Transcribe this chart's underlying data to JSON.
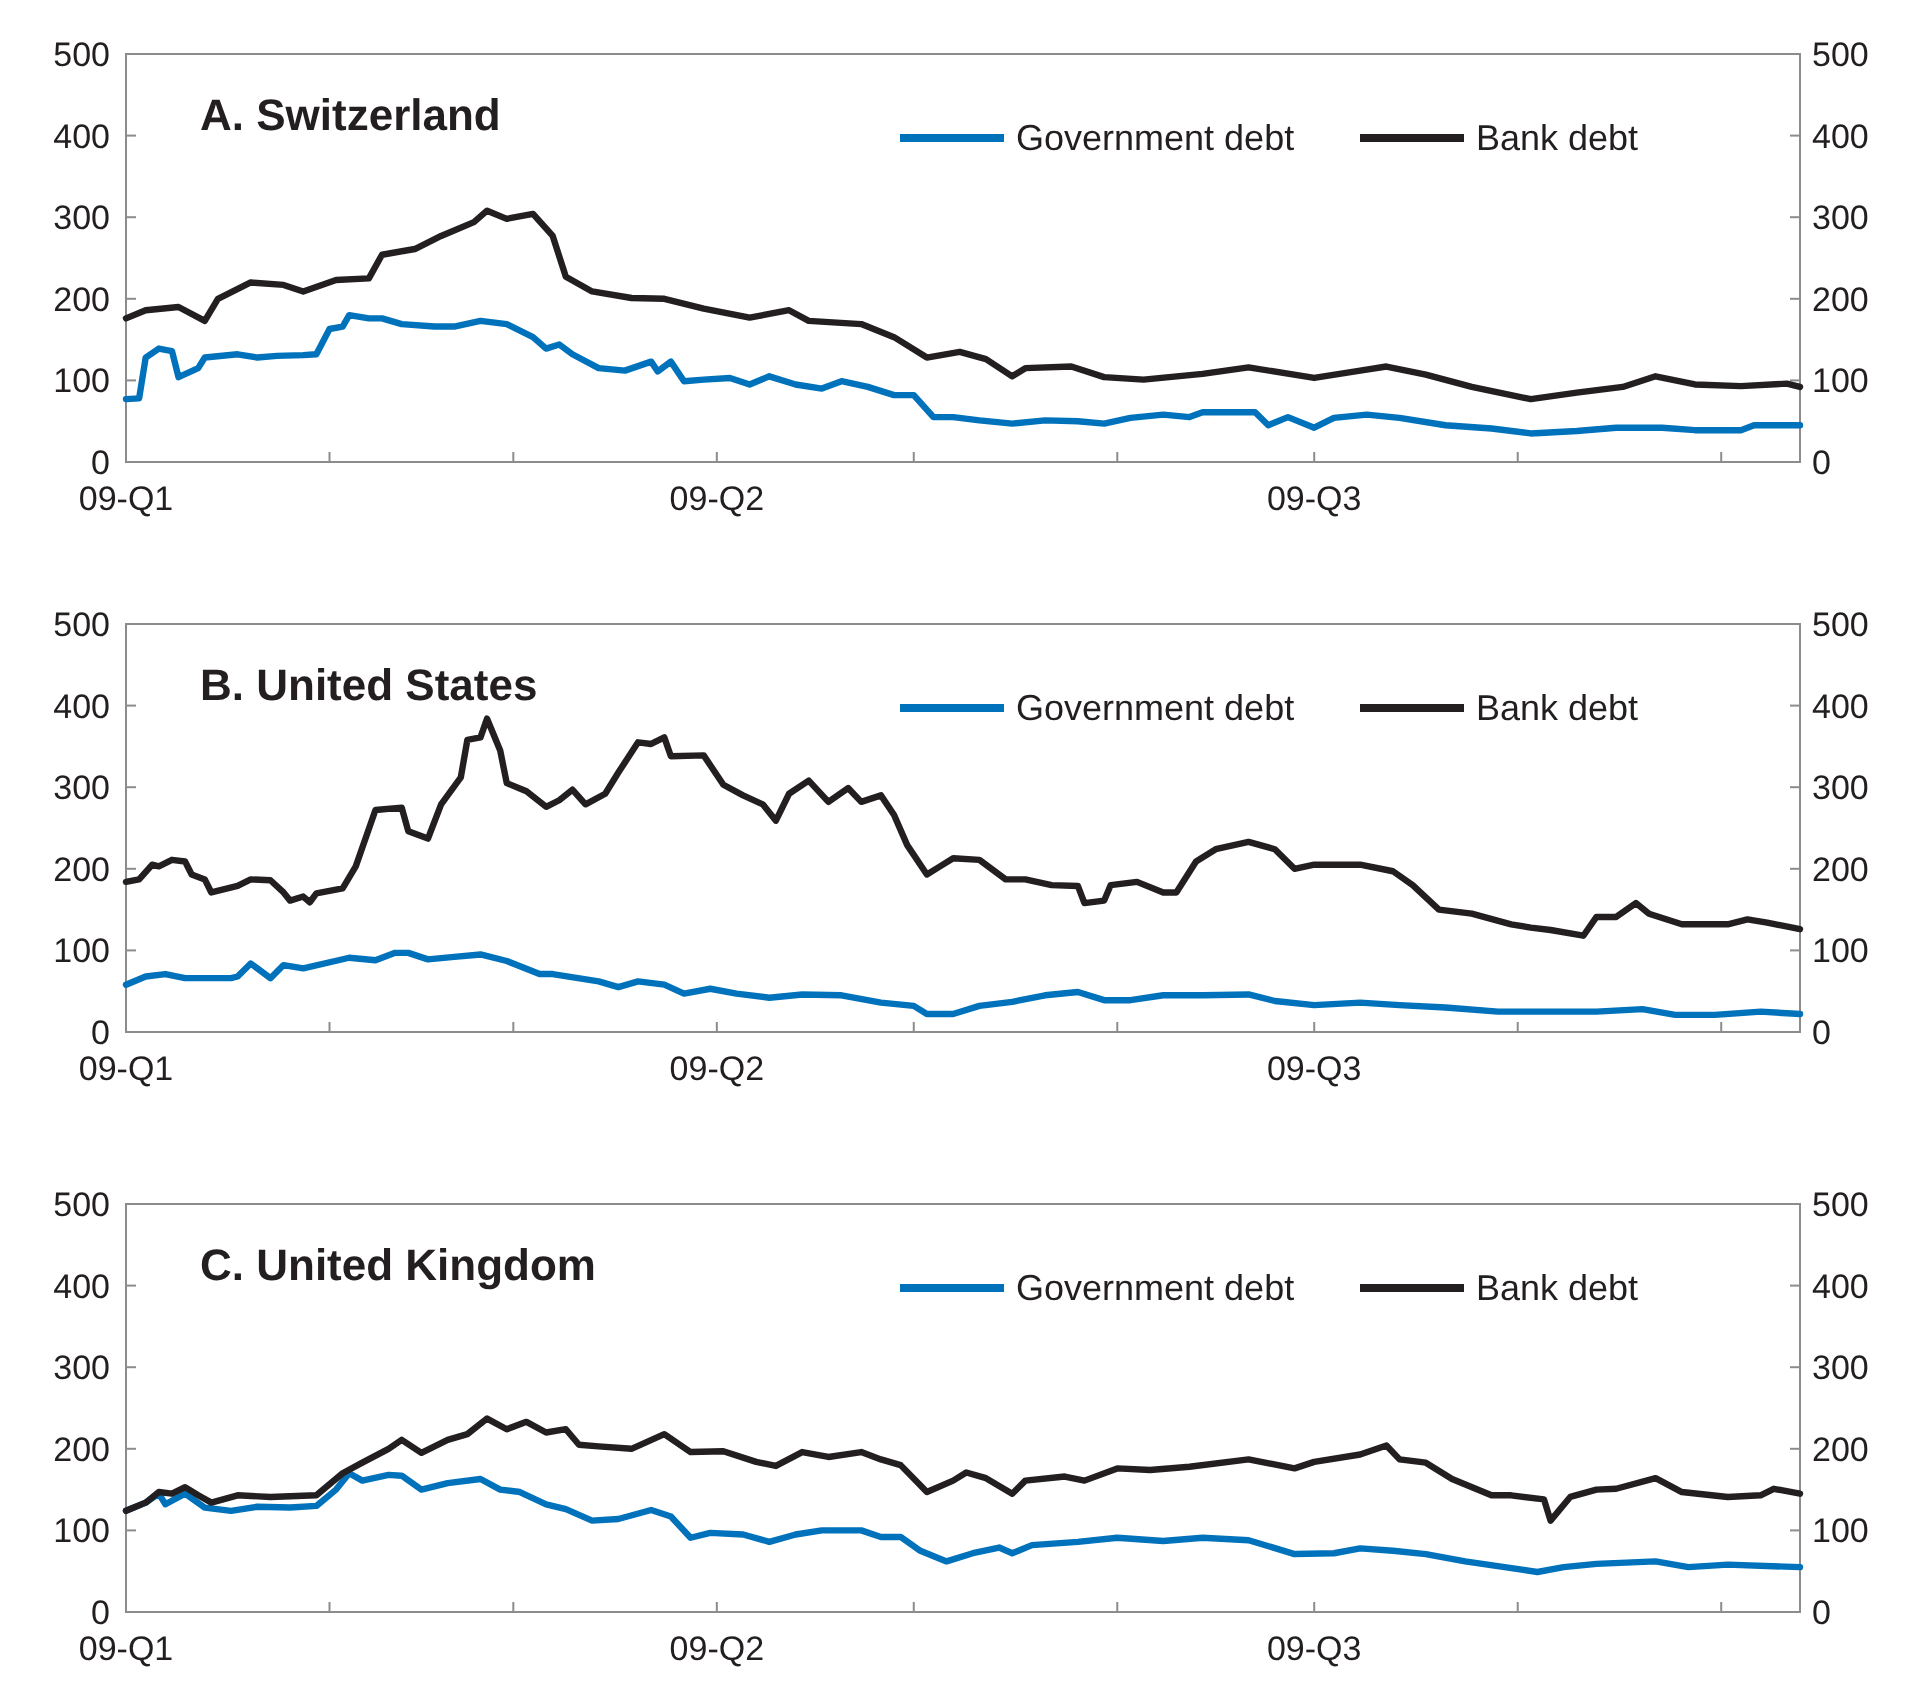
{
  "chart_data": [
    {
      "type": "line",
      "title": "A.  Switzerland",
      "xlim": [
        "--01-01",
        "--09-13"
      ],
      "xticks": [
        {
          "value": "--01-01",
          "label": "09-Q1"
        },
        {
          "value": "--02-01",
          "label": null
        },
        {
          "value": "--03-01",
          "label": null
        },
        {
          "value": "--04-01",
          "label": "09-Q2"
        },
        {
          "value": "--05-01",
          "label": null
        },
        {
          "value": "--06-01",
          "label": null
        },
        {
          "value": "--07-01",
          "label": "09-Q3"
        },
        {
          "value": "--08-01",
          "label": null
        },
        {
          "value": "--09-01",
          "label": null
        }
      ],
      "ylim": [
        0,
        500
      ],
      "yticks": [
        0,
        100,
        200,
        300,
        400,
        500
      ],
      "y2lim": [
        0,
        500
      ],
      "y2ticks": [
        0,
        100,
        200,
        300,
        400,
        500
      ],
      "legend": "top right",
      "series": [
        {
          "name": "Government debt",
          "color": "#0072bc",
          "x": [
            "--01-01",
            "--01-03",
            "--01-04",
            "--01-06",
            "--01-08",
            "--01-09",
            "--01-12",
            "--01-13",
            "--01-18",
            "--01-21",
            "--01-24",
            "--01-28",
            "--01-30",
            "--02-01",
            "--02-03",
            "--02-04",
            "--02-07",
            "--02-09",
            "--02-12",
            "--02-17",
            "--02-20",
            "--02-24",
            "--02-28",
            "--03-04",
            "--03-06",
            "--03-08",
            "--03-10",
            "--03-14",
            "--03-18",
            "--03-22",
            "--03-23",
            "--03-25",
            "--03-27",
            "--03-30",
            "--04-03",
            "--04-06",
            "--04-09",
            "--04-13",
            "--04-17",
            "--04-20",
            "--04-24",
            "--04-28",
            "--05-01",
            "--05-04",
            "--05-07",
            "--05-11",
            "--05-16",
            "--05-21",
            "--05-26",
            "--05-30",
            "--06-03",
            "--06-08",
            "--06-12",
            "--06-14",
            "--06-22",
            "--06-24",
            "--06-27",
            "--07-01",
            "--07-04",
            "--07-09",
            "--07-14",
            "--07-21",
            "--07-28",
            "--08-03",
            "--08-10",
            "--08-16",
            "--08-23",
            "--08-28",
            "--09-04",
            "--09-06",
            "--09-13"
          ],
          "values": [
            77,
            78,
            128,
            139,
            136,
            104,
            115,
            128,
            132,
            128,
            130,
            131,
            132,
            163,
            166,
            180,
            176,
            176,
            169,
            166,
            166,
            173,
            169,
            153,
            139,
            144,
            132,
            115,
            112,
            123,
            111,
            123,
            99,
            101,
            103,
            95,
            105,
            95,
            90,
            99,
            92,
            82,
            82,
            55,
            55,
            51,
            47,
            51,
            50,
            47,
            54,
            58,
            55,
            61,
            61,
            45,
            55,
            42,
            54,
            58,
            54,
            45,
            41,
            35,
            38,
            42,
            42,
            39,
            39,
            45,
            45
          ]
        },
        {
          "name": "Bank debt",
          "color": "#231f20",
          "x": [
            "--01-01",
            "--01-04",
            "--01-09",
            "--01-13",
            "--01-15",
            "--01-20",
            "--01-25",
            "--01-28",
            "--02-02",
            "--02-07",
            "--02-09",
            "--02-14",
            "--02-18",
            "--02-23",
            "--02-25",
            "--02-28",
            "--03-04",
            "--03-07",
            "--03-09",
            "--03-13",
            "--03-19",
            "--03-24",
            "--03-30",
            "--04-06",
            "--04-12",
            "--04-15",
            "--04-23",
            "--04-28",
            "--05-03",
            "--05-08",
            "--05-12",
            "--05-16",
            "--05-18",
            "--05-25",
            "--05-30",
            "--06-05",
            "--06-14",
            "--06-21",
            "--07-01",
            "--07-08",
            "--07-12",
            "--07-18",
            "--07-25",
            "--07-31",
            "--08-03",
            "--08-10",
            "--08-17",
            "--08-22",
            "--08-28",
            "--09-04",
            "--09-11",
            "--09-13"
          ],
          "values": [
            176,
            186,
            190,
            173,
            200,
            220,
            217,
            209,
            223,
            225,
            254,
            261,
            277,
            294,
            308,
            298,
            304,
            277,
            227,
            209,
            201,
            200,
            188,
            177,
            186,
            173,
            169,
            153,
            128,
            135,
            126,
            105,
            115,
            117,
            104,
            101,
            108,
            116,
            103,
            112,
            117,
            107,
            92,
            82,
            77,
            85,
            92,
            105,
            95,
            93,
            96,
            92
          ]
        }
      ]
    },
    {
      "type": "line",
      "title": "B.  United States",
      "xlim": [
        "--01-01",
        "--09-13"
      ],
      "xticks": [
        {
          "value": "--01-01",
          "label": "09-Q1"
        },
        {
          "value": "--02-01",
          "label": null
        },
        {
          "value": "--03-01",
          "label": null
        },
        {
          "value": "--04-01",
          "label": "09-Q2"
        },
        {
          "value": "--05-01",
          "label": null
        },
        {
          "value": "--06-01",
          "label": null
        },
        {
          "value": "--07-01",
          "label": "09-Q3"
        },
        {
          "value": "--08-01",
          "label": null
        },
        {
          "value": "--09-01",
          "label": null
        }
      ],
      "ylim": [
        0,
        500
      ],
      "yticks": [
        0,
        100,
        200,
        300,
        400,
        500
      ],
      "y2lim": [
        0,
        500
      ],
      "y2ticks": [
        0,
        100,
        200,
        300,
        400,
        500
      ],
      "legend": "top right",
      "series": [
        {
          "name": "Government debt",
          "color": "#0072bc",
          "x": [
            "--01-01",
            "--01-04",
            "--01-07",
            "--01-10",
            "--01-17",
            "--01-18",
            "--01-20",
            "--01-21",
            "--01-23",
            "--01-25",
            "--01-28",
            "--02-04",
            "--02-08",
            "--02-11",
            "--02-13",
            "--02-16",
            "--02-20",
            "--02-24",
            "--02-28",
            "--03-05",
            "--03-07",
            "--03-14",
            "--03-17",
            "--03-20",
            "--03-24",
            "--03-27",
            "--03-31",
            "--04-04",
            "--04-09",
            "--04-14",
            "--04-20",
            "--04-26",
            "--05-01",
            "--05-03",
            "--05-07",
            "--05-11",
            "--05-16",
            "--05-21",
            "--05-26",
            "--05-30",
            "--06-03",
            "--06-08",
            "--06-14",
            "--06-21",
            "--06-25",
            "--07-01",
            "--07-08",
            "--07-14",
            "--07-21",
            "--07-29",
            "--08-05",
            "--08-13",
            "--08-20",
            "--08-25",
            "--08-31",
            "--09-07",
            "--09-13"
          ],
          "values": [
            58,
            68,
            71,
            66,
            66,
            68,
            84,
            78,
            66,
            82,
            78,
            91,
            88,
            97,
            97,
            89,
            92,
            95,
            87,
            71,
            71,
            62,
            55,
            62,
            58,
            47,
            53,
            47,
            42,
            46,
            45,
            36,
            32,
            22,
            22,
            32,
            37,
            45,
            49,
            39,
            39,
            45,
            45,
            46,
            38,
            33,
            36,
            33,
            30,
            25,
            25,
            25,
            28,
            21,
            21,
            25,
            22
          ]
        },
        {
          "name": "Bank debt",
          "color": "#231f20",
          "x": [
            "--01-01",
            "--01-03",
            "--01-05",
            "--01-06",
            "--01-08",
            "--01-10",
            "--01-11",
            "--01-13",
            "--01-14",
            "--01-18",
            "--01-20",
            "--01-23",
            "--01-25",
            "--01-26",
            "--01-28",
            "--01-29",
            "--01-30",
            "--02-03",
            "--02-05",
            "--02-08",
            "--02-12",
            "--02-13",
            "--02-16",
            "--02-18",
            "--02-21",
            "--02-22",
            "--02-24",
            "--02-25",
            "--02-27",
            "--02-28",
            "--03-03",
            "--03-06",
            "--03-08",
            "--03-10",
            "--03-12",
            "--03-15",
            "--03-17",
            "--03-20",
            "--03-22",
            "--03-24",
            "--03-25",
            "--03-30",
            "--04-02",
            "--04-05",
            "--04-08",
            "--04-10",
            "--04-12",
            "--04-15",
            "--04-18",
            "--04-21",
            "--04-23",
            "--04-26",
            "--04-28",
            "--04-30",
            "--05-03",
            "--05-05",
            "--05-07",
            "--05-11",
            "--05-15",
            "--05-18",
            "--05-22",
            "--05-26",
            "--05-27",
            "--05-30",
            "--05-31",
            "--06-04",
            "--06-08",
            "--06-10",
            "--06-13",
            "--06-16",
            "--06-21",
            "--06-25",
            "--06-28",
            "--07-01",
            "--07-08",
            "--07-13",
            "--07-16",
            "--07-20",
            "--07-25",
            "--07-31",
            "--08-03",
            "--08-06",
            "--08-11",
            "--08-13",
            "--08-16",
            "--08-19",
            "--08-21",
            "--08-26",
            "--08-30",
            "--09-02",
            "--09-05",
            "--09-08",
            "--09-13"
          ],
          "values": [
            184,
            187,
            205,
            203,
            211,
            209,
            193,
            187,
            171,
            179,
            187,
            186,
            171,
            161,
            166,
            159,
            170,
            176,
            203,
            272,
            275,
            246,
            237,
            279,
            312,
            358,
            361,
            384,
            345,
            305,
            295,
            276,
            284,
            297,
            279,
            292,
            318,
            355,
            353,
            361,
            338,
            339,
            303,
            290,
            279,
            259,
            292,
            308,
            282,
            299,
            282,
            290,
            266,
            229,
            193,
            203,
            213,
            211,
            187,
            187,
            180,
            179,
            158,
            161,
            180,
            184,
            171,
            171,
            209,
            224,
            233,
            224,
            200,
            205,
            205,
            197,
            180,
            150,
            145,
            132,
            128,
            125,
            118,
            141,
            141,
            158,
            145,
            132,
            132,
            132,
            138,
            134,
            126
          ]
        }
      ]
    },
    {
      "type": "line",
      "title": "C.  United Kingdom",
      "xlim": [
        "--01-01",
        "--09-13"
      ],
      "xticks": [
        {
          "value": "--01-01",
          "label": "09-Q1"
        },
        {
          "value": "--02-01",
          "label": null
        },
        {
          "value": "--03-01",
          "label": null
        },
        {
          "value": "--04-01",
          "label": "09-Q2"
        },
        {
          "value": "--05-01",
          "label": null
        },
        {
          "value": "--06-01",
          "label": null
        },
        {
          "value": "--07-01",
          "label": "09-Q3"
        },
        {
          "value": "--08-01",
          "label": null
        },
        {
          "value": "--09-01",
          "label": null
        }
      ],
      "ylim": [
        0,
        500
      ],
      "yticks": [
        0,
        100,
        200,
        300,
        400,
        500
      ],
      "y2lim": [
        0,
        500
      ],
      "y2ticks": [
        0,
        100,
        200,
        300,
        400,
        500
      ],
      "legend": "top right",
      "series": [
        {
          "name": "Government debt",
          "color": "#0072bc",
          "x": [
            "--01-01",
            "--01-04",
            "--01-06",
            "--01-07",
            "--01-10",
            "--01-13",
            "--01-17",
            "--01-21",
            "--01-26",
            "--01-30",
            "--02-02",
            "--02-04",
            "--02-06",
            "--02-10",
            "--02-12",
            "--02-15",
            "--02-19",
            "--02-24",
            "--02-27",
            "--03-02",
            "--03-06",
            "--03-09",
            "--03-13",
            "--03-17",
            "--03-22",
            "--03-25",
            "--03-28",
            "--03-31",
            "--04-05",
            "--04-09",
            "--04-13",
            "--04-17",
            "--04-23",
            "--04-26",
            "--04-29",
            "--05-02",
            "--05-06",
            "--05-10",
            "--05-14",
            "--05-16",
            "--05-19",
            "--05-26",
            "--06-01",
            "--06-08",
            "--06-14",
            "--06-21",
            "--06-28",
            "--07-04",
            "--07-08",
            "--07-13",
            "--07-18",
            "--07-24",
            "--07-30",
            "--08-04",
            "--08-08",
            "--08-13",
            "--08-22",
            "--08-27",
            "--09-02",
            "--09-13"
          ],
          "values": [
            124,
            134,
            145,
            132,
            145,
            128,
            124,
            129,
            128,
            130,
            150,
            170,
            161,
            168,
            167,
            150,
            158,
            163,
            150,
            147,
            132,
            126,
            112,
            114,
            125,
            117,
            91,
            97,
            95,
            86,
            95,
            100,
            100,
            92,
            92,
            75,
            62,
            72,
            79,
            72,
            82,
            86,
            91,
            87,
            91,
            88,
            71,
            72,
            78,
            75,
            71,
            62,
            55,
            49,
            55,
            59,
            62,
            55,
            58,
            55
          ]
        },
        {
          "name": "Bank debt",
          "color": "#231f20",
          "x": [
            "--01-01",
            "--01-04",
            "--01-06",
            "--01-08",
            "--01-10",
            "--01-12",
            "--01-14",
            "--01-18",
            "--01-23",
            "--01-30",
            "--02-03",
            "--02-06",
            "--02-10",
            "--02-12",
            "--02-15",
            "--02-19",
            "--02-22",
            "--02-25",
            "--02-28",
            "--03-03",
            "--03-06",
            "--03-09",
            "--03-11",
            "--03-14",
            "--03-19",
            "--03-24",
            "--03-28",
            "--04-02",
            "--04-07",
            "--04-10",
            "--04-14",
            "--04-18",
            "--04-23",
            "--04-26",
            "--04-29",
            "--05-03",
            "--05-07",
            "--05-09",
            "--05-12",
            "--05-16",
            "--05-18",
            "--05-24",
            "--05-27",
            "--06-01",
            "--06-06",
            "--06-12",
            "--06-21",
            "--06-28",
            "--07-01",
            "--07-08",
            "--07-12",
            "--07-14",
            "--07-18",
            "--07-22",
            "--07-28",
            "--07-31",
            "--08-05",
            "--08-06",
            "--08-09",
            "--08-13",
            "--08-16",
            "--08-22",
            "--08-26",
            "--09-02",
            "--09-07",
            "--09-09",
            "--09-13"
          ],
          "values": [
            124,
            134,
            147,
            145,
            153,
            143,
            134,
            143,
            141,
            143,
            170,
            183,
            200,
            211,
            195,
            211,
            218,
            237,
            224,
            233,
            220,
            224,
            205,
            203,
            200,
            218,
            196,
            197,
            184,
            179,
            196,
            190,
            196,
            187,
            180,
            147,
            161,
            171,
            164,
            145,
            161,
            166,
            161,
            176,
            174,
            178,
            187,
            176,
            184,
            193,
            204,
            187,
            183,
            163,
            143,
            143,
            138,
            112,
            141,
            150,
            151,
            164,
            147,
            141,
            143,
            151,
            145
          ]
        }
      ]
    }
  ]
}
